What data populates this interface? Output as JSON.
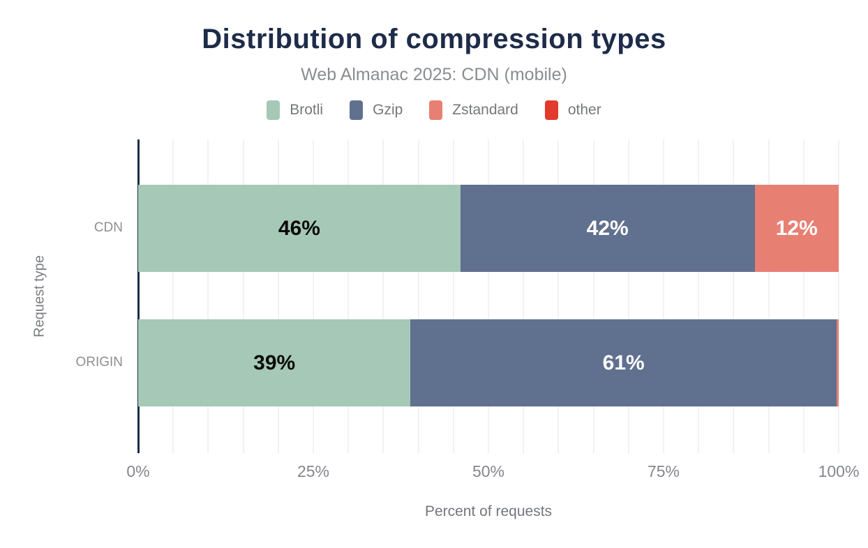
{
  "header": {
    "title": "Distribution of compression types",
    "subtitle": "Web Almanac 2025: CDN (mobile)"
  },
  "colors": {
    "axis_line": "#1e2b49",
    "gridline": "#f2f2f2",
    "title_text": "#1e2b49",
    "muted_text": "#8a8d90"
  },
  "chart_data": {
    "type": "bar",
    "orientation": "horizontal",
    "stacked": true,
    "title": "Distribution of compression types",
    "subtitle": "Web Almanac 2025: CDN (mobile)",
    "xlabel": "Percent of requests",
    "ylabel": "Request type",
    "xlim": [
      0,
      100
    ],
    "grid": "vertical",
    "grid_step_percent": 5,
    "legend_position": "top",
    "categories": [
      "CDN",
      "ORIGIN"
    ],
    "series": [
      {
        "name": "Brotli",
        "color": "#a5c9b6",
        "label_color": "#0a0a0a",
        "values": [
          46,
          39
        ]
      },
      {
        "name": "Gzip",
        "color": "#60708f",
        "label_color": "#ffffff",
        "values": [
          42,
          61
        ]
      },
      {
        "name": "Zstandard",
        "color": "#e87f73",
        "label_color": "#ffffff",
        "values": [
          12,
          0.3
        ]
      },
      {
        "name": "other",
        "color": "#e23a2c",
        "label_color": "#ffffff",
        "values": [
          0,
          0
        ]
      }
    ],
    "segment_labels": [
      [
        "46%",
        "42%",
        "12%",
        ""
      ],
      [
        "39%",
        "61%",
        "",
        ""
      ]
    ],
    "xticks": [
      {
        "label": "0%",
        "value": 0
      },
      {
        "label": "25%",
        "value": 25
      },
      {
        "label": "50%",
        "value": 50
      },
      {
        "label": "75%",
        "value": 75
      },
      {
        "label": "100%",
        "value": 100
      }
    ]
  }
}
